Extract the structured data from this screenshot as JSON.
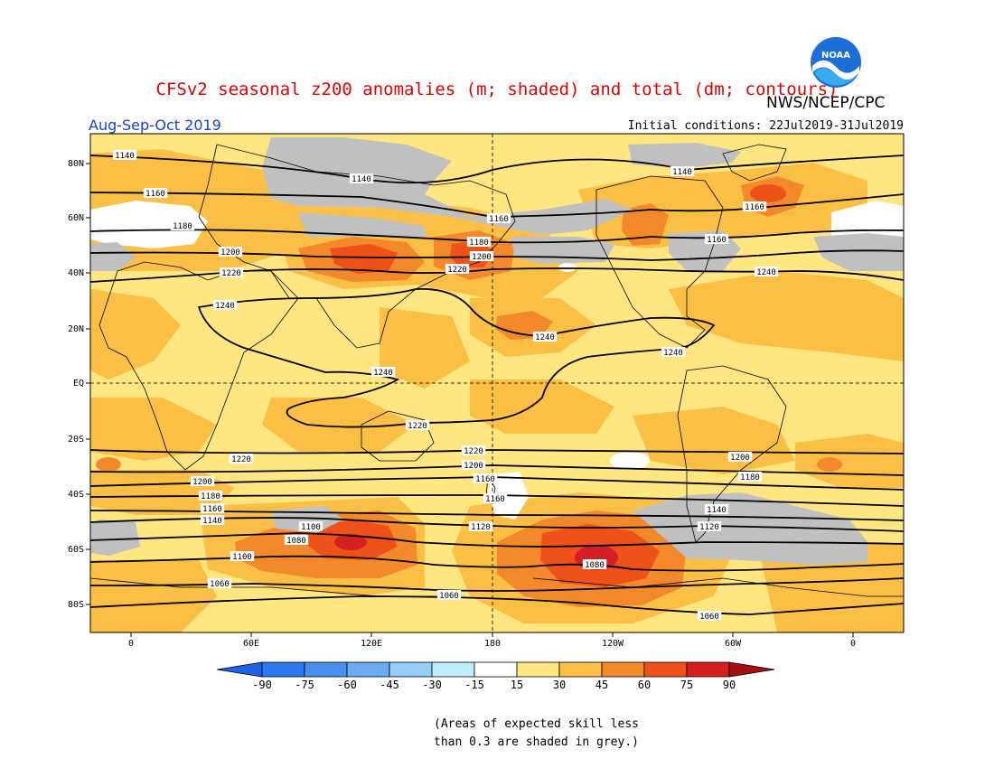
{
  "header": {
    "title": "CFSv2 seasonal z200 anomalies (m; shaded) and total (dm; contours)",
    "credit": "NWS/NCEP/CPC",
    "season": "Aug-Sep-Oct 2019",
    "initial_conditions": "Initial conditions: 22Jul2019-31Jul2019",
    "logo_text": "NOAA"
  },
  "map": {
    "lat_labels": [
      "80N",
      "60N",
      "40N",
      "20N",
      "EQ",
      "20S",
      "40S",
      "60S",
      "80S"
    ],
    "lon_labels": [
      "0",
      "60E",
      "120E",
      "180",
      "120W",
      "60W",
      "0"
    ],
    "contour_labels": [
      "1140",
      "1140",
      "1140",
      "1160",
      "1160",
      "1160",
      "1160",
      "1180",
      "1180",
      "1200",
      "1200",
      "1220",
      "1220",
      "1240",
      "1240",
      "1240",
      "1240",
      "1240",
      "1220",
      "1220",
      "1220",
      "1200",
      "1200",
      "1200",
      "1180",
      "1180",
      "1160",
      "1160",
      "1160",
      "1140",
      "1140",
      "1120",
      "1120",
      "1100",
      "1100",
      "1080",
      "1080",
      "1060",
      "1060",
      "1060"
    ],
    "colors": {
      "grey_low_skill": "#c0c0c0",
      "white_neutral": "#ffffff",
      "light_yellow": "#ffe680",
      "light_orange": "#fbbf45",
      "orange": "#f4892c",
      "red_orange": "#ef5219",
      "dark_red": "#d42020"
    }
  },
  "colorbar": {
    "tick_labels": [
      "-90",
      "-75",
      "-60",
      "-45",
      "-30",
      "-15",
      "15",
      "30",
      "45",
      "60",
      "75",
      "90"
    ],
    "colors": [
      "#1e60e8",
      "#2c78ec",
      "#4990ee",
      "#6aabf2",
      "#96cdf6",
      "#bfeefa",
      "#ffffff",
      "#ffe680",
      "#fbbf45",
      "#f4892c",
      "#ef5219",
      "#d42020",
      "#a81010"
    ]
  },
  "footnote": {
    "line1": "(Areas of expected skill less",
    "line2": "than 0.3 are shaded in grey.)"
  }
}
